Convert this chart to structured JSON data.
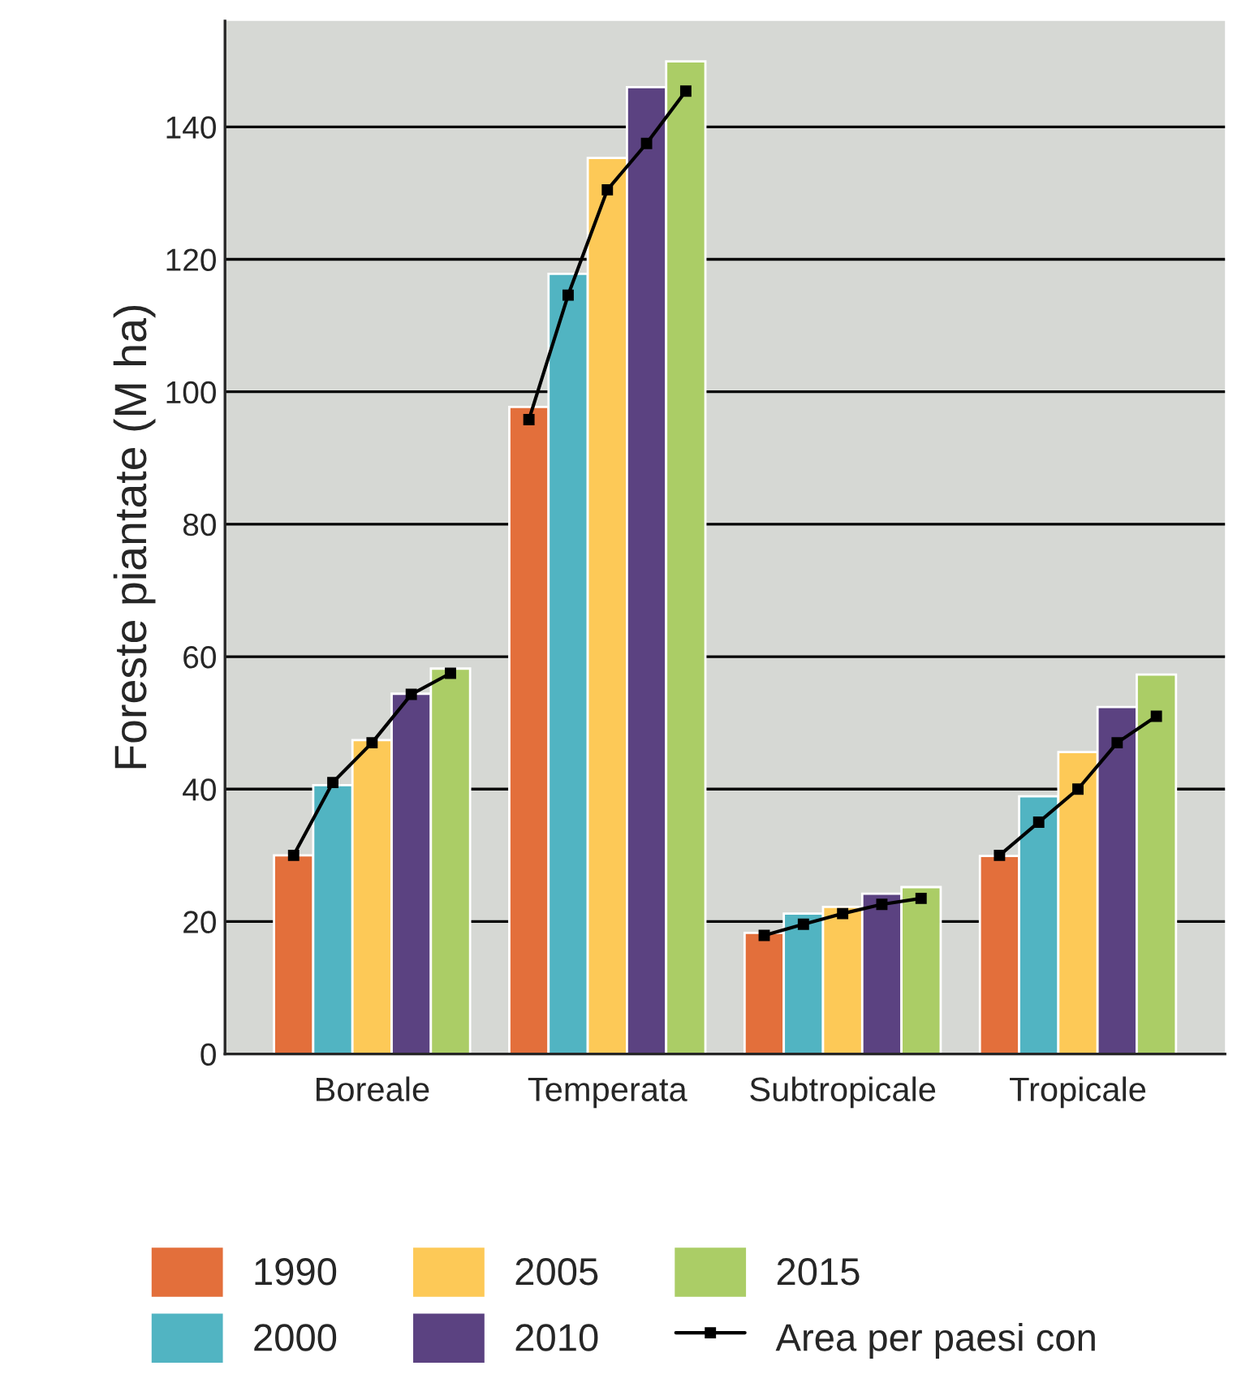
{
  "chart_data": {
    "type": "bar",
    "ylabel": "Foreste piantate (M ha)",
    "categories": [
      null,
      null,
      "Boreale",
      null,
      null,
      null,
      null,
      null,
      "Temperata",
      null,
      null,
      null,
      null,
      null,
      "Subtropicale",
      null,
      null,
      null,
      null,
      null,
      "Tropicale",
      null,
      null
    ],
    "series": [
      {
        "name": "1990",
        "color": "#e36f3b",
        "values": [
          30,
          null,
          null,
          null,
          null,
          null,
          97.7,
          null,
          null,
          null,
          null,
          null,
          18.3,
          null,
          null,
          null,
          null,
          null,
          29.9,
          null,
          null,
          null,
          null
        ]
      },
      {
        "name": "2000",
        "color": "#51b4c2",
        "values": [
          null,
          40.6,
          null,
          null,
          null,
          null,
          null,
          117.8,
          null,
          null,
          null,
          null,
          null,
          21.2,
          null,
          null,
          null,
          null,
          null,
          38.9,
          null,
          null,
          null
        ]
      },
      {
        "name": "2005",
        "color": "#fdc957",
        "values": [
          null,
          null,
          47.4,
          null,
          null,
          null,
          null,
          null,
          135.3,
          null,
          null,
          null,
          null,
          null,
          22.2,
          null,
          null,
          null,
          null,
          null,
          45.6,
          null,
          null
        ]
      },
      {
        "name": "2010",
        "color": "#5b4281",
        "values": [
          null,
          null,
          null,
          54.4,
          null,
          null,
          null,
          null,
          null,
          146,
          null,
          null,
          null,
          null,
          null,
          24.2,
          null,
          null,
          null,
          null,
          null,
          52.4,
          null
        ]
      },
      {
        "name": "2015",
        "color": "#abcd66",
        "values": [
          null,
          null,
          null,
          null,
          58.2,
          null,
          null,
          null,
          null,
          null,
          149.9,
          null,
          null,
          null,
          null,
          null,
          25.2,
          null,
          null,
          null,
          null,
          null,
          57.3
        ]
      },
      {
        "name": "Area per paesi con",
        "type": "line",
        "color": "#000000",
        "marker": "square",
        "line_style": "solid",
        "values": [
          30,
          41,
          47,
          54.3,
          57.5,
          null,
          95.8,
          114.6,
          130.5,
          137.5,
          145.4,
          null,
          17.9,
          19.6,
          21.2,
          22.6,
          23.5,
          null,
          30,
          35,
          40,
          47,
          51
        ]
      }
    ],
    "ylim": [
      0,
      156
    ],
    "yticks": [
      0,
      20,
      40,
      60,
      80,
      100,
      120,
      140
    ],
    "grid": "y",
    "legend": "bottom"
  }
}
